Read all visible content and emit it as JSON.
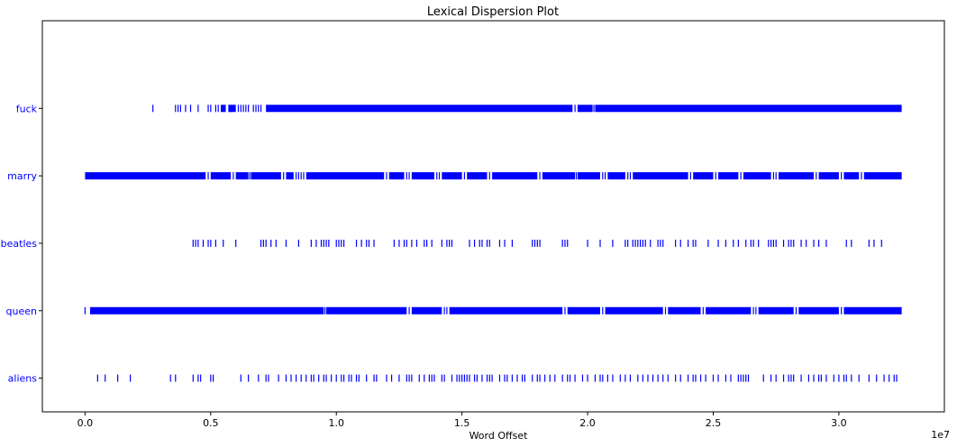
{
  "chart_data": {
    "type": "scatter",
    "title": "Lexical Dispersion Plot",
    "xlabel": "Word Offset",
    "ylabel": "",
    "x_offset_text": "1e7",
    "x_tick_labels": [
      "0.0",
      "0.5",
      "1.0",
      "1.5",
      "2.0",
      "2.5",
      "3.0"
    ],
    "x_tick_values": [
      0.0,
      0.5,
      1.0,
      1.5,
      2.0,
      2.5,
      3.0
    ],
    "xlim": [
      -0.17,
      3.42
    ],
    "ylim": [
      -0.5,
      5.3
    ],
    "marker": "|",
    "marker_color": "#0000ff",
    "tick_label_color": "#0000ff",
    "grid": false,
    "words": [
      "fuck",
      "marry",
      "beatles",
      "queen",
      "aliens"
    ],
    "series": [
      {
        "name": "fuck",
        "segments": [
          [
            0.54,
            0.56
          ],
          [
            0.57,
            0.6
          ],
          [
            0.72,
            1.94
          ],
          [
            1.96,
            2.02
          ],
          [
            2.03,
            3.25
          ]
        ],
        "points": [
          0.27,
          0.36,
          0.37,
          0.38,
          0.4,
          0.42,
          0.45,
          0.49,
          0.5,
          0.52,
          0.53,
          0.58,
          0.61,
          0.62,
          0.63,
          0.64,
          0.65,
          0.67,
          0.68,
          0.69,
          0.7,
          1.95,
          2.025
        ]
      },
      {
        "name": "marry",
        "segments": [
          [
            0.0,
            0.48
          ],
          [
            0.5,
            0.58
          ],
          [
            0.6,
            0.65
          ],
          [
            0.66,
            0.78
          ],
          [
            0.8,
            0.83
          ],
          [
            0.88,
            1.19
          ],
          [
            1.21,
            1.27
          ],
          [
            1.3,
            1.39
          ],
          [
            1.42,
            1.5
          ],
          [
            1.52,
            1.6
          ],
          [
            1.62,
            1.8
          ],
          [
            1.82,
            1.95
          ],
          [
            1.96,
            2.05
          ],
          [
            2.08,
            2.15
          ],
          [
            2.18,
            2.4
          ],
          [
            2.42,
            2.5
          ],
          [
            2.52,
            2.6
          ],
          [
            2.62,
            2.73
          ],
          [
            2.76,
            2.9
          ],
          [
            2.92,
            3.0
          ],
          [
            3.02,
            3.08
          ],
          [
            3.1,
            3.25
          ]
        ],
        "points": [
          0.49,
          0.59,
          0.655,
          0.79,
          0.84,
          0.85,
          0.86,
          0.87,
          1.2,
          1.28,
          1.29,
          1.4,
          1.41,
          1.51,
          1.61,
          1.81,
          1.955,
          2.06,
          2.07,
          2.16,
          2.17,
          2.41,
          2.51,
          2.61,
          2.74,
          2.75,
          2.91,
          3.01,
          3.09
        ]
      },
      {
        "name": "beatles",
        "segments": [],
        "points": [
          0.43,
          0.44,
          0.45,
          0.47,
          0.49,
          0.5,
          0.52,
          0.55,
          0.6,
          0.7,
          0.71,
          0.72,
          0.74,
          0.76,
          0.8,
          0.85,
          0.9,
          0.92,
          0.94,
          0.95,
          0.96,
          0.97,
          1.0,
          1.01,
          1.02,
          1.03,
          1.08,
          1.1,
          1.12,
          1.13,
          1.15,
          1.23,
          1.25,
          1.27,
          1.28,
          1.3,
          1.32,
          1.35,
          1.36,
          1.38,
          1.42,
          1.44,
          1.45,
          1.46,
          1.53,
          1.55,
          1.57,
          1.58,
          1.6,
          1.61,
          1.65,
          1.67,
          1.7,
          1.78,
          1.79,
          1.8,
          1.81,
          1.9,
          1.91,
          1.92,
          2.0,
          2.05,
          2.1,
          2.15,
          2.16,
          2.18,
          2.19,
          2.2,
          2.21,
          2.22,
          2.23,
          2.25,
          2.28,
          2.29,
          2.3,
          2.35,
          2.37,
          2.4,
          2.42,
          2.43,
          2.48,
          2.52,
          2.55,
          2.58,
          2.6,
          2.63,
          2.65,
          2.66,
          2.68,
          2.72,
          2.73,
          2.74,
          2.75,
          2.78,
          2.8,
          2.81,
          2.82,
          2.85,
          2.87,
          2.9,
          2.92,
          2.95,
          3.03,
          3.05,
          3.12,
          3.14,
          3.17
        ]
      },
      {
        "name": "queen",
        "segments": [
          [
            0.02,
            0.95
          ],
          [
            0.96,
            1.28
          ],
          [
            1.3,
            1.42
          ],
          [
            1.45,
            1.9
          ],
          [
            1.92,
            2.05
          ],
          [
            2.07,
            2.3
          ],
          [
            2.32,
            2.45
          ],
          [
            2.47,
            2.65
          ],
          [
            2.68,
            2.82
          ],
          [
            2.84,
            3.0
          ],
          [
            3.02,
            3.25
          ]
        ],
        "points": [
          0.0,
          0.955,
          1.29,
          1.43,
          1.44,
          1.91,
          2.06,
          2.31,
          2.46,
          2.66,
          2.67,
          2.83,
          3.01
        ]
      },
      {
        "name": "aliens",
        "segments": [],
        "points": [
          0.05,
          0.08,
          0.13,
          0.18,
          0.34,
          0.36,
          0.43,
          0.45,
          0.46,
          0.5,
          0.51,
          0.62,
          0.65,
          0.69,
          0.72,
          0.73,
          0.77,
          0.8,
          0.82,
          0.84,
          0.86,
          0.88,
          0.9,
          0.91,
          0.93,
          0.95,
          0.96,
          0.98,
          1.0,
          1.02,
          1.03,
          1.05,
          1.06,
          1.08,
          1.09,
          1.12,
          1.15,
          1.16,
          1.2,
          1.22,
          1.25,
          1.28,
          1.29,
          1.3,
          1.33,
          1.35,
          1.37,
          1.38,
          1.39,
          1.42,
          1.43,
          1.46,
          1.48,
          1.49,
          1.5,
          1.51,
          1.52,
          1.53,
          1.55,
          1.56,
          1.58,
          1.6,
          1.61,
          1.62,
          1.65,
          1.67,
          1.68,
          1.7,
          1.72,
          1.74,
          1.75,
          1.78,
          1.8,
          1.81,
          1.83,
          1.85,
          1.87,
          1.9,
          1.92,
          1.93,
          1.95,
          1.98,
          2.0,
          2.03,
          2.05,
          2.06,
          2.08,
          2.1,
          2.13,
          2.15,
          2.17,
          2.2,
          2.22,
          2.24,
          2.26,
          2.28,
          2.3,
          2.32,
          2.35,
          2.37,
          2.4,
          2.42,
          2.43,
          2.45,
          2.47,
          2.5,
          2.52,
          2.55,
          2.57,
          2.6,
          2.61,
          2.62,
          2.63,
          2.64,
          2.7,
          2.73,
          2.75,
          2.78,
          2.8,
          2.81,
          2.82,
          2.85,
          2.88,
          2.9,
          2.92,
          2.93,
          2.95,
          2.98,
          3.0,
          3.02,
          3.03,
          3.05,
          3.08,
          3.12,
          3.15,
          3.18,
          3.2,
          3.22,
          3.23
        ]
      }
    ]
  }
}
